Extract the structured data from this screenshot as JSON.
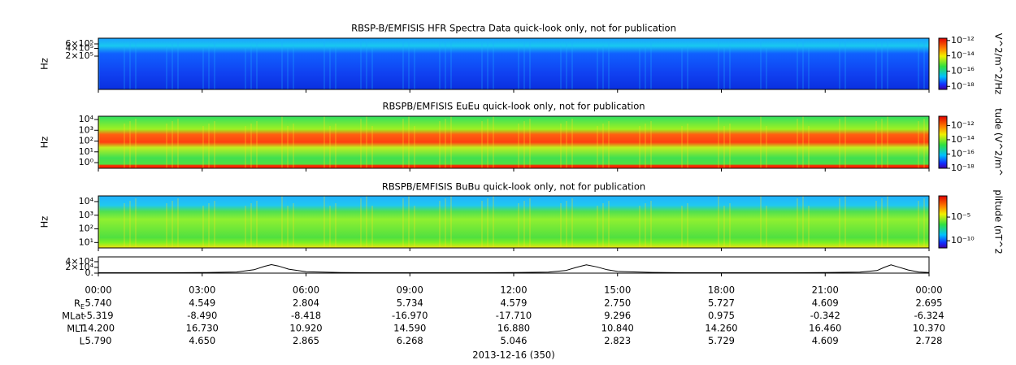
{
  "chart_data": [
    {
      "type": "spectrogram",
      "title": "RBSP-B/EMFISIS  HFR Spectra Data quick-look only, not for publication",
      "ylabel": "Hz",
      "log_y": true,
      "ylim": [
        10000,
        1000000
      ],
      "yticks": [
        {
          "value": 200000,
          "label": "2×10⁵"
        },
        {
          "value": 400000,
          "label": "4×10⁵"
        },
        {
          "value": 600000,
          "label": "6×10⁵"
        }
      ],
      "colorbar_label": "V^2/m^2/Hz",
      "colorbar_lim": [
        4e-19,
        2e-12
      ],
      "colorbar_ticks": [
        {
          "value": 1e-12,
          "label": "10⁻¹²"
        },
        {
          "value": 1e-14,
          "label": "10⁻¹⁴"
        },
        {
          "value": 1e-16,
          "label": "10⁻¹⁶"
        },
        {
          "value": 1e-18,
          "label": "10⁻¹⁸"
        }
      ]
    },
    {
      "type": "spectrogram",
      "title": "RBSPB/EMFISIS  EuEu quick-look only, not for publication",
      "ylabel": "Hz",
      "log_y": true,
      "ylim": [
        0.3,
        20000
      ],
      "yticks": [
        {
          "value": 1,
          "label": "10⁰"
        },
        {
          "value": 10,
          "label": "10¹"
        },
        {
          "value": 100,
          "label": "10²"
        },
        {
          "value": 1000,
          "label": "10³"
        },
        {
          "value": 10000,
          "label": "10⁴"
        }
      ],
      "colorbar_label": "tude (V^2/m^",
      "colorbar_lim": [
        1e-18,
        2e-11
      ],
      "colorbar_ticks": [
        {
          "value": 1e-12,
          "label": "10⁻¹²"
        },
        {
          "value": 1e-14,
          "label": "10⁻¹⁴"
        },
        {
          "value": 1e-16,
          "label": "10⁻¹⁶"
        },
        {
          "value": 1e-18,
          "label": "10⁻¹⁸"
        }
      ]
    },
    {
      "type": "spectrogram",
      "title": "RBSPB/EMFISIS  BuBu quick-look only, not for publication",
      "ylabel": "Hz",
      "log_y": true,
      "ylim": [
        4,
        26000
      ],
      "yticks": [
        {
          "value": 10,
          "label": "10¹"
        },
        {
          "value": 100,
          "label": "10²"
        },
        {
          "value": 1000,
          "label": "10³"
        },
        {
          "value": 10000,
          "label": "10⁴"
        }
      ],
      "colorbar_label": "plitude (nT^2",
      "colorbar_lim": [
        3e-12,
        0.3
      ],
      "colorbar_ticks": [
        {
          "value": 1e-05,
          "label": "10⁻⁵"
        },
        {
          "value": 1e-10,
          "label": "10⁻¹⁰"
        }
      ]
    },
    {
      "type": "line",
      "color": "#000000",
      "ylim": [
        0,
        57000
      ],
      "yticks": [
        {
          "value": 0,
          "label": "0."
        },
        {
          "value": 20000,
          "label": "2×10⁴"
        },
        {
          "value": 40000,
          "label": "4×10⁴"
        }
      ],
      "xlim": [
        0,
        24
      ],
      "xticks": [
        {
          "value": 0,
          "label": "00:00"
        },
        {
          "value": 3,
          "label": "03:00"
        },
        {
          "value": 6,
          "label": "06:00"
        },
        {
          "value": 9,
          "label": "09:00"
        },
        {
          "value": 12,
          "label": "12:00"
        },
        {
          "value": 15,
          "label": "15:00"
        },
        {
          "value": 18,
          "label": "18:00"
        },
        {
          "value": 21,
          "label": "21:00"
        },
        {
          "value": 24,
          "label": "00:00"
        }
      ],
      "x": [
        0,
        1,
        2,
        3,
        4,
        4.5,
        4.8,
        5,
        5.2,
        5.5,
        6,
        7,
        8,
        9,
        10,
        11,
        12,
        13,
        13.5,
        13.8,
        14.1,
        14.4,
        14.7,
        15,
        16,
        17,
        18,
        19,
        20,
        21,
        22,
        22.5,
        22.7,
        22.9,
        23.1,
        23.4,
        23.7,
        24
      ],
      "values": [
        1500,
        1500,
        1500,
        2000,
        4000,
        12000,
        24000,
        30000,
        25000,
        14000,
        5000,
        2000,
        1500,
        1500,
        1500,
        1500,
        2000,
        3500,
        9000,
        20000,
        29000,
        22000,
        12000,
        6000,
        2500,
        1500,
        1500,
        1500,
        1500,
        2000,
        3500,
        9000,
        20000,
        29000,
        22000,
        11000,
        4000,
        2000
      ]
    }
  ],
  "ephemeris": [
    {
      "label": "R",
      "sub": "E",
      "values": [
        "5.740",
        "4.549",
        "2.804",
        "5.734",
        "4.579",
        "2.750",
        "5.727",
        "4.609",
        "2.695"
      ]
    },
    {
      "label": "MLat",
      "values": [
        "-5.319",
        "-8.490",
        "-8.418",
        "-16.970",
        "-17.710",
        "9.296",
        "0.975",
        "-0.342",
        "-6.324"
      ]
    },
    {
      "label": "MLT",
      "values": [
        "14.200",
        "16.730",
        "10.920",
        "14.590",
        "16.880",
        "10.840",
        "14.260",
        "16.460",
        "10.370"
      ]
    },
    {
      "label": "L",
      "values": [
        "5.790",
        "4.650",
        "2.865",
        "6.268",
        "5.046",
        "2.823",
        "5.729",
        "4.609",
        "2.728"
      ]
    }
  ],
  "footer": "2013-12-16 (350)"
}
